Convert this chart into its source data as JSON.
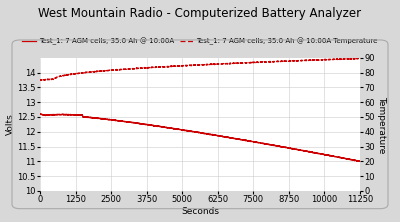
{
  "title": "West Mountain Radio - Computerized Battery Analyzer",
  "legend1": "Test_1: 7 AGM cells, 35.0 Ah @ 10.00A",
  "legend2": "Test_1: 7 AGM cells, 35.0 Ah @ 10.00A Temperature",
  "xlabel": "Seconds",
  "ylabel_left": "Volts",
  "ylabel_right": "Temperature",
  "xlim": [
    0,
    11250
  ],
  "ylim_left": [
    10,
    14.5
  ],
  "ylim_right": [
    0,
    90
  ],
  "xticks": [
    0,
    1250,
    2500,
    3750,
    5000,
    6250,
    7500,
    8750,
    10000,
    11250
  ],
  "yticks_left": [
    10,
    10.5,
    11,
    11.5,
    12,
    12.5,
    13,
    13.5,
    14
  ],
  "yticks_right": [
    0,
    10,
    20,
    30,
    40,
    50,
    60,
    70,
    80,
    90
  ],
  "line1_color": "#cc0000",
  "line2_color": "#cc0000",
  "bg_color": "#d8d8d8",
  "plot_bg": "#ffffff",
  "title_fontsize": 8.5,
  "label_fontsize": 6.5,
  "tick_fontsize": 6,
  "legend_fontsize": 5
}
